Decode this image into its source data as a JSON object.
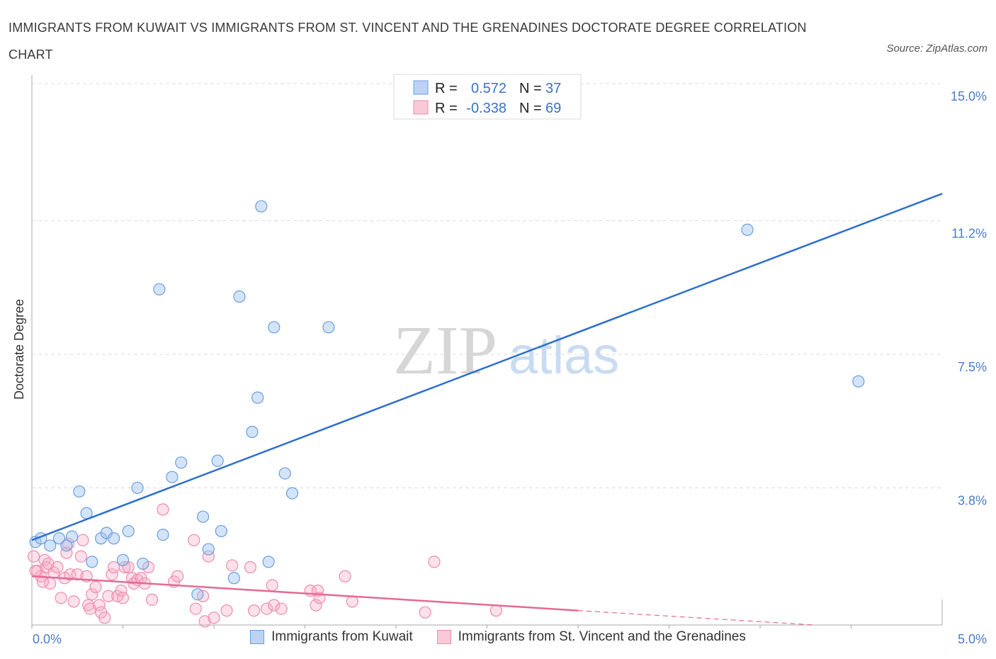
{
  "title": "IMMIGRANTS FROM KUWAIT VS IMMIGRANTS FROM ST. VINCENT AND THE GRENADINES DOCTORATE DEGREE CORRELATION CHART",
  "source": "Source: ZipAtlas.com",
  "watermark": {
    "zip": "ZIP",
    "atlas": "atlas"
  },
  "legend": {
    "r_label": "R =",
    "n_label": "N =",
    "kuwait": {
      "r": "0.572",
      "n": "37"
    },
    "svg": {
      "r": "-0.338",
      "n": "69"
    }
  },
  "chart_data": {
    "type": "scatter",
    "title": "IMMIGRANTS FROM KUWAIT VS IMMIGRANTS FROM ST. VINCENT AND THE GRENADINES DOCTORATE DEGREE CORRELATION CHART",
    "xlabel": "",
    "ylabel": "Doctorate Degree",
    "xlim": [
      0,
      5
    ],
    "ylim": [
      0,
      15
    ],
    "x_tick_labels": [
      "0.0%",
      "5.0%"
    ],
    "y_ticks": [
      3.8,
      7.5,
      11.2,
      15.0
    ],
    "y_tick_labels": [
      "3.8%",
      "7.5%",
      "11.2%",
      "15.0%"
    ],
    "grid": true,
    "colors": {
      "kuwait": "#6a9de0",
      "svg": "#f08bab",
      "kuwait_line": "#2e6fcc",
      "svg_line": "#e46a93"
    },
    "series": [
      {
        "name": "Immigrants from Kuwait",
        "r": 0.572,
        "n": 37,
        "trend": {
          "x": [
            0,
            5
          ],
          "y": [
            2.35,
            11.95
          ]
        },
        "points": [
          [
            0.02,
            2.3
          ],
          [
            0.05,
            2.4
          ],
          [
            0.1,
            2.2
          ],
          [
            0.15,
            2.4
          ],
          [
            0.19,
            2.2
          ],
          [
            0.22,
            2.45
          ],
          [
            0.26,
            3.7
          ],
          [
            0.3,
            3.1
          ],
          [
            0.33,
            1.75
          ],
          [
            0.38,
            2.4
          ],
          [
            0.41,
            2.55
          ],
          [
            0.45,
            2.4
          ],
          [
            0.5,
            1.8
          ],
          [
            0.53,
            2.6
          ],
          [
            0.58,
            3.8
          ],
          [
            0.61,
            1.7
          ],
          [
            0.7,
            9.3
          ],
          [
            0.72,
            2.5
          ],
          [
            0.77,
            4.1
          ],
          [
            0.82,
            4.5
          ],
          [
            0.91,
            0.85
          ],
          [
            0.94,
            3.0
          ],
          [
            0.97,
            2.1
          ],
          [
            1.02,
            4.55
          ],
          [
            1.04,
            2.6
          ],
          [
            1.11,
            1.3
          ],
          [
            1.14,
            9.1
          ],
          [
            1.21,
            5.35
          ],
          [
            1.24,
            6.3
          ],
          [
            1.26,
            11.6
          ],
          [
            1.3,
            1.75
          ],
          [
            1.33,
            8.25
          ],
          [
            1.39,
            4.2
          ],
          [
            1.43,
            3.65
          ],
          [
            1.63,
            8.25
          ],
          [
            3.93,
            10.95
          ],
          [
            4.54,
            6.75
          ]
        ]
      },
      {
        "name": "Immigrants from St. Vincent and the Grenadines",
        "r": -0.338,
        "n": 69,
        "trend": {
          "x": [
            0,
            3.0
          ],
          "y": [
            1.35,
            0.4
          ]
        },
        "trend_dashed": {
          "x": [
            3.0,
            4.3
          ],
          "y": [
            0.4,
            0.0
          ]
        },
        "points": [
          [
            0.01,
            1.9
          ],
          [
            0.03,
            1.5
          ],
          [
            0.05,
            1.35
          ],
          [
            0.07,
            1.8
          ],
          [
            0.08,
            1.6
          ],
          [
            0.1,
            1.15
          ],
          [
            0.12,
            1.45
          ],
          [
            0.14,
            1.6
          ],
          [
            0.16,
            0.75
          ],
          [
            0.18,
            1.3
          ],
          [
            0.19,
            2.0
          ],
          [
            0.2,
            2.25
          ],
          [
            0.21,
            1.4
          ],
          [
            0.23,
            0.65
          ],
          [
            0.25,
            1.4
          ],
          [
            0.27,
            1.9
          ],
          [
            0.28,
            2.35
          ],
          [
            0.3,
            1.35
          ],
          [
            0.31,
            0.55
          ],
          [
            0.32,
            0.45
          ],
          [
            0.33,
            0.85
          ],
          [
            0.35,
            1.05
          ],
          [
            0.37,
            0.55
          ],
          [
            0.38,
            0.35
          ],
          [
            0.4,
            0.2
          ],
          [
            0.42,
            0.8
          ],
          [
            0.44,
            1.4
          ],
          [
            0.45,
            1.6
          ],
          [
            0.47,
            0.8
          ],
          [
            0.49,
            0.95
          ],
          [
            0.5,
            0.75
          ],
          [
            0.51,
            1.6
          ],
          [
            0.53,
            1.6
          ],
          [
            0.55,
            1.3
          ],
          [
            0.56,
            1.15
          ],
          [
            0.58,
            1.25
          ],
          [
            0.6,
            1.3
          ],
          [
            0.62,
            1.15
          ],
          [
            0.64,
            1.6
          ],
          [
            0.66,
            0.7
          ],
          [
            0.72,
            3.2
          ],
          [
            0.78,
            1.2
          ],
          [
            0.8,
            1.35
          ],
          [
            0.89,
            2.35
          ],
          [
            0.9,
            0.45
          ],
          [
            0.94,
            0.8
          ],
          [
            0.95,
            0.1
          ],
          [
            0.97,
            1.9
          ],
          [
            1.0,
            0.2
          ],
          [
            1.07,
            0.4
          ],
          [
            1.1,
            1.65
          ],
          [
            1.2,
            1.6
          ],
          [
            1.22,
            0.4
          ],
          [
            1.29,
            0.45
          ],
          [
            1.32,
            1.1
          ],
          [
            1.33,
            0.55
          ],
          [
            1.37,
            0.45
          ],
          [
            1.53,
            0.95
          ],
          [
            1.56,
            0.55
          ],
          [
            1.57,
            0.95
          ],
          [
            1.58,
            0.75
          ],
          [
            1.72,
            1.35
          ],
          [
            1.76,
            0.65
          ],
          [
            2.16,
            0.35
          ],
          [
            2.21,
            1.75
          ],
          [
            2.55,
            0.4
          ],
          [
            0.02,
            1.5
          ],
          [
            0.06,
            1.2
          ],
          [
            0.09,
            1.7
          ]
        ]
      }
    ]
  },
  "bottom_legend": {
    "kuwait": "Immigrants from Kuwait",
    "svg": "Immigrants from St. Vincent and the Grenadines"
  }
}
